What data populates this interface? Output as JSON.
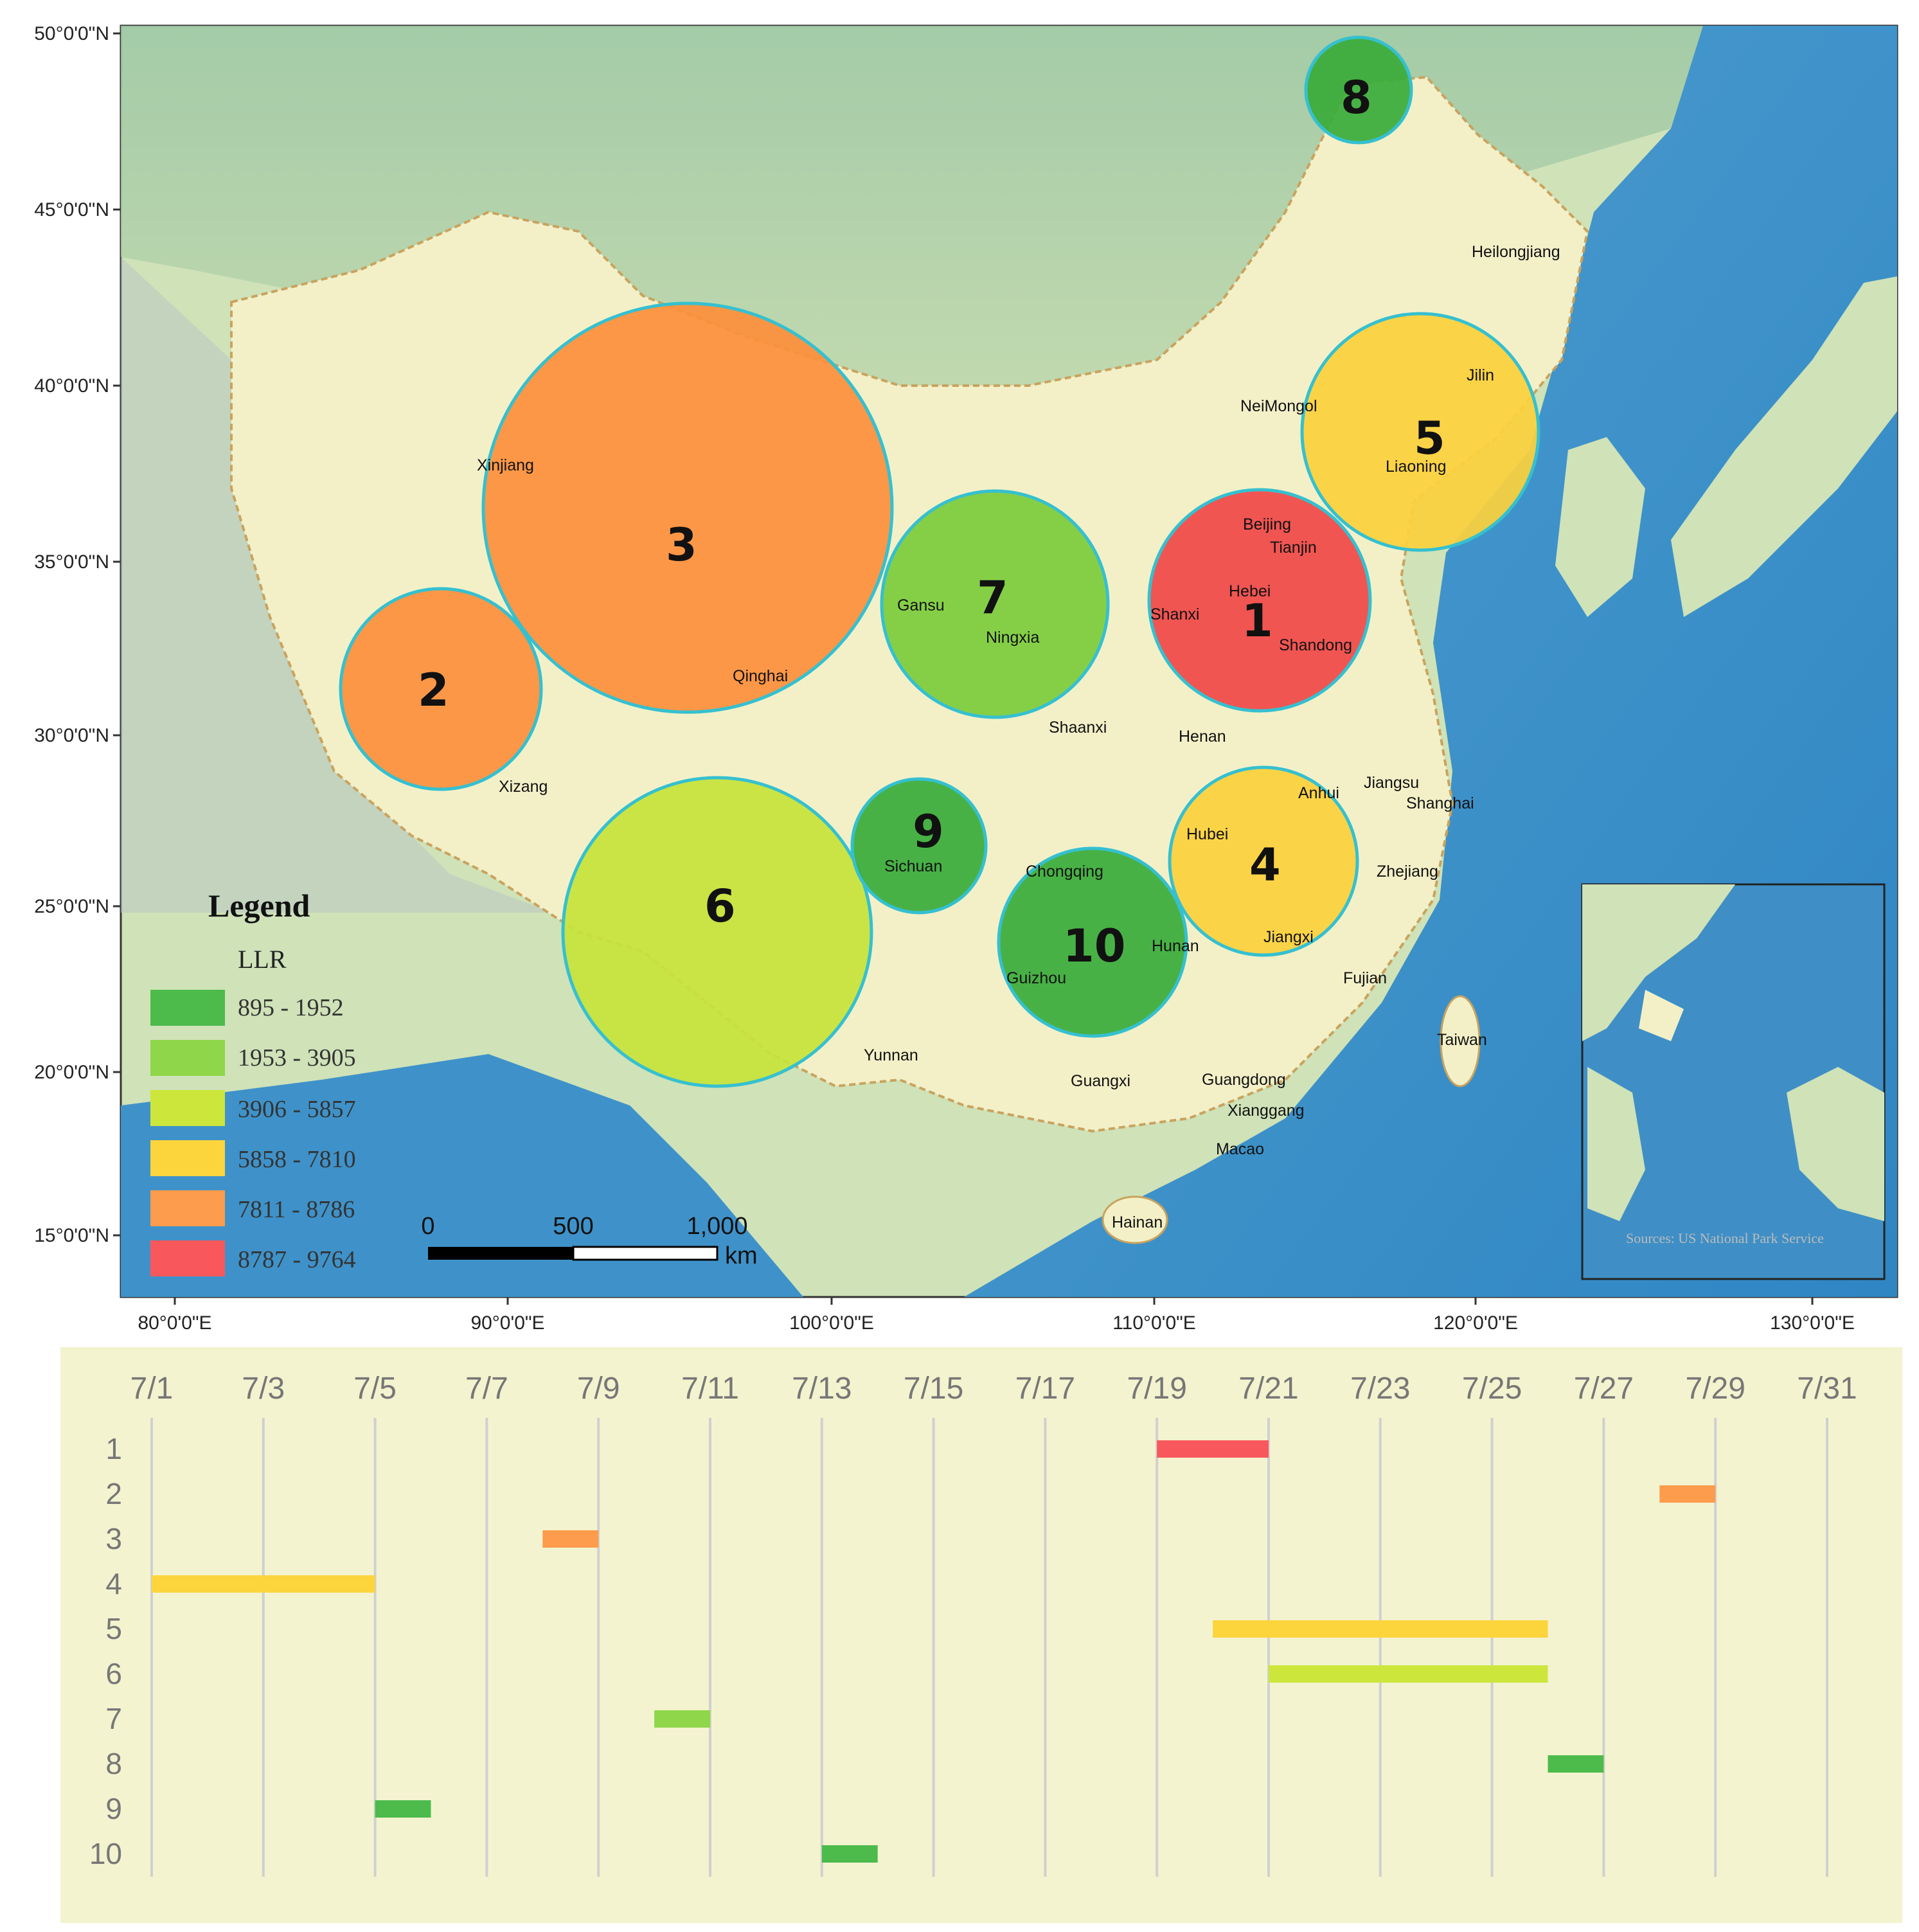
{
  "map": {
    "lat_labels": [
      "50°0'0\"N",
      "45°0'0\"N",
      "40°0'0\"N",
      "35°0'0\"N",
      "30°0'0\"N",
      "25°0'0\"N",
      "20°0'0\"N",
      "15°0'0\"N"
    ],
    "lon_labels": [
      "80°0'0\"E",
      "90°0'0\"E",
      "100°0'0\"E",
      "110°0'0\"E",
      "120°0'0\"E",
      "130°0'0\"E"
    ],
    "provinces": [
      "Heilongjiang",
      "Jilin",
      "NeiMongol",
      "Liaoning",
      "Xinjiang",
      "Beijing",
      "Tianjin",
      "Hebei",
      "Shanxi",
      "Shandong",
      "Gansu",
      "Ningxia",
      "Qinghai",
      "Shaanxi",
      "Henan",
      "Xizang",
      "Jiangsu",
      "Anhui",
      "Shanghai",
      "Sichuan",
      "Hubei",
      "Chongqing",
      "Zhejiang",
      "Hunan",
      "Jiangxi",
      "Guizhou",
      "Fujian",
      "Taiwan",
      "Yunnan",
      "Guangxi",
      "Guangdong",
      "Xianggang",
      "Macao",
      "Hainan"
    ],
    "clusters": [
      {
        "id": "1",
        "llr_class": 6
      },
      {
        "id": "2",
        "llr_class": 5
      },
      {
        "id": "3",
        "llr_class": 5
      },
      {
        "id": "4",
        "llr_class": 4
      },
      {
        "id": "5",
        "llr_class": 4
      },
      {
        "id": "6",
        "llr_class": 3
      },
      {
        "id": "7",
        "llr_class": 2
      },
      {
        "id": "8",
        "llr_class": 1
      },
      {
        "id": "9",
        "llr_class": 1
      },
      {
        "id": "10",
        "llr_class": 1
      }
    ],
    "legend": {
      "title": "Legend",
      "subtitle": "LLR",
      "items": [
        {
          "label": "895  -  1952",
          "color": "#4cbb4c"
        },
        {
          "label": "1953  -  3905",
          "color": "#8fd64a"
        },
        {
          "label": "3906  -  5857",
          "color": "#cce63c"
        },
        {
          "label": "5858  -  7810",
          "color": "#fcd43c"
        },
        {
          "label": "7811  -  8786",
          "color": "#fc9c4c"
        },
        {
          "label": "8787  -  9764",
          "color": "#f8585c"
        }
      ]
    },
    "scale_bar": {
      "ticks": [
        "0",
        "500",
        "1,000"
      ],
      "unit": "km"
    },
    "inset_credit": "Sources: US National Park Service"
  },
  "chart_data": {
    "type": "timeline",
    "x_ticks": [
      "7/1",
      "7/3",
      "7/5",
      "7/7",
      "7/9",
      "7/11",
      "7/13",
      "7/15",
      "7/17",
      "7/19",
      "7/21",
      "7/23",
      "7/25",
      "7/27",
      "7/29",
      "7/31"
    ],
    "rows": [
      "1",
      "2",
      "3",
      "4",
      "5",
      "6",
      "7",
      "8",
      "9",
      "10"
    ],
    "spans": [
      {
        "cluster": "1",
        "start": "7/19",
        "end": "7/21",
        "color": "#f8585c"
      },
      {
        "cluster": "2",
        "start": "7/28",
        "end": "7/29",
        "color": "#fc9c4c"
      },
      {
        "cluster": "3",
        "start": "7/8",
        "end": "7/9",
        "color": "#fc9c4c"
      },
      {
        "cluster": "4",
        "start": "7/1",
        "end": "7/5",
        "color": "#fcd43c"
      },
      {
        "cluster": "5",
        "start": "7/20",
        "end": "7/26",
        "color": "#fcd43c"
      },
      {
        "cluster": "6",
        "start": "7/21",
        "end": "7/26",
        "color": "#cce63c"
      },
      {
        "cluster": "7",
        "start": "7/10",
        "end": "7/11",
        "color": "#8fd64a"
      },
      {
        "cluster": "8",
        "start": "7/26",
        "end": "7/27",
        "color": "#4cbb4c"
      },
      {
        "cluster": "9",
        "start": "7/5",
        "end": "7/6",
        "color": "#4cbb4c"
      },
      {
        "cluster": "10",
        "start": "7/13",
        "end": "7/14",
        "color": "#4cbb4c"
      }
    ]
  }
}
